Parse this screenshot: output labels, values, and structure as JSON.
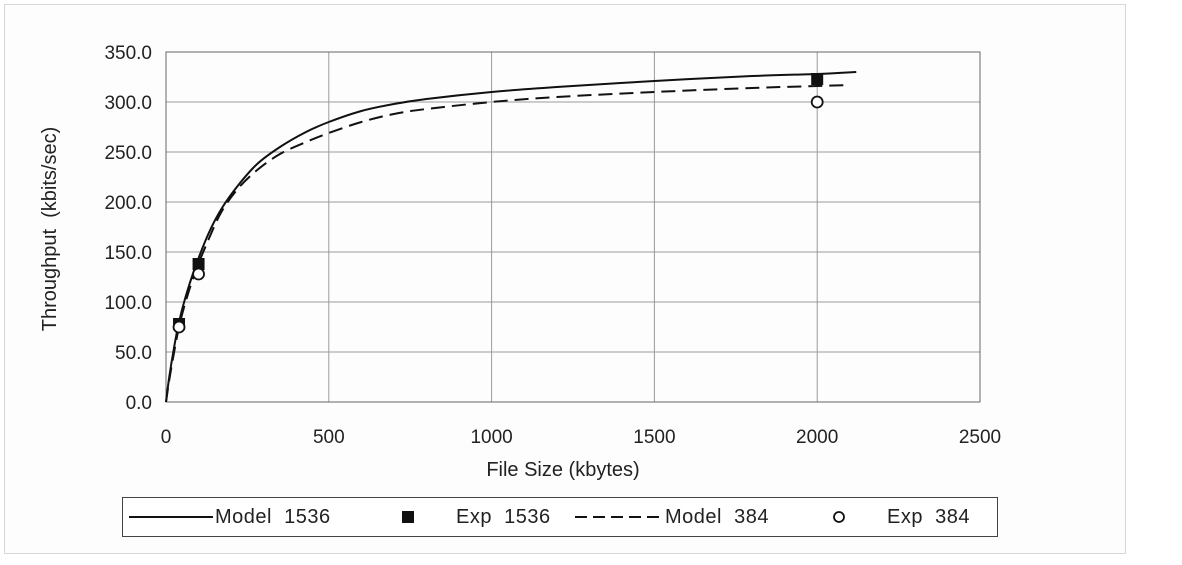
{
  "chart_data": {
    "type": "line",
    "title": "",
    "xlabel": "File Size (kbytes)",
    "ylabel": "Throughput  (kbits/sec)",
    "xlim": [
      0,
      2500
    ],
    "ylim": [
      0,
      350
    ],
    "xticks": [
      0,
      500,
      1000,
      1500,
      2000,
      2500
    ],
    "xtick_labels": [
      "0",
      "500",
      "1000",
      "1500",
      "2000",
      "2500"
    ],
    "yticks": [
      0,
      50,
      100,
      150,
      200,
      250,
      300,
      350
    ],
    "ytick_labels": [
      "0.0",
      "50.0",
      "100.0",
      "150.0",
      "200.0",
      "250.0",
      "300.0",
      "350.0"
    ],
    "grid": true,
    "legend_position": "bottom",
    "series": [
      {
        "name": "Model  1536",
        "kind": "line",
        "style": "solid",
        "x": [
          0,
          10,
          25,
          40,
          60,
          90,
          130,
          170,
          220,
          280,
          350,
          430,
          500,
          600,
          700,
          800,
          1000,
          1200,
          1500,
          1800,
          2000,
          2120
        ],
        "y": [
          0,
          25,
          55,
          80,
          105,
          135,
          168,
          193,
          216,
          238,
          255,
          270,
          280,
          291,
          298,
          303,
          310,
          315,
          321,
          326,
          328,
          330
        ]
      },
      {
        "name": "Exp  1536",
        "kind": "marker",
        "marker": "filled-square",
        "x": [
          40,
          100,
          2000
        ],
        "y": [
          78,
          138,
          323
        ]
      },
      {
        "name": "Model  384",
        "kind": "line",
        "style": "dashed",
        "x": [
          0,
          10,
          25,
          40,
          60,
          90,
          130,
          170,
          220,
          280,
          350,
          430,
          500,
          600,
          700,
          800,
          1000,
          1200,
          1500,
          1800,
          2000,
          2100
        ],
        "y": [
          0,
          22,
          50,
          75,
          100,
          130,
          162,
          190,
          213,
          232,
          248,
          260,
          269,
          280,
          288,
          293,
          300,
          305,
          310,
          314,
          316,
          317
        ]
      },
      {
        "name": "Exp  384",
        "kind": "marker",
        "marker": "open-circle",
        "x": [
          40,
          100,
          2000
        ],
        "y": [
          75,
          128,
          300
        ]
      }
    ]
  }
}
